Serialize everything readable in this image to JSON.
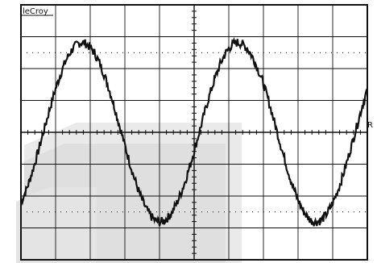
{
  "brand": "leCroy",
  "channel_label": "R",
  "colors": {
    "background": "#ffffff",
    "grid": "#111111",
    "trace": "#111111",
    "watermark": "#e6e6e6"
  },
  "chart_data": {
    "type": "line",
    "title": "",
    "xlabel": "",
    "ylabel": "",
    "grid": true,
    "divisions": {
      "x": 10,
      "y": 8
    },
    "xlim": [
      0,
      10
    ],
    "ylim": [
      -4,
      4
    ],
    "series": [
      {
        "x": [
          0,
          0.125,
          0.25,
          0.375,
          0.5,
          0.625,
          0.75,
          0.875,
          1,
          1.125,
          1.25,
          1.375,
          1.5,
          1.625,
          1.75,
          1.875,
          2,
          2.125,
          2.25,
          2.375,
          2.5,
          2.625,
          2.75,
          2.875,
          3,
          3.125,
          3.25,
          3.375,
          3.5,
          3.625,
          3.75,
          3.875,
          4,
          4.125,
          4.25,
          4.375,
          4.5,
          4.625,
          4.75,
          4.875,
          5,
          5.125,
          5.25,
          5.375,
          5.5,
          5.625,
          5.75,
          5.875,
          6,
          6.125,
          6.25,
          6.375,
          6.5,
          6.625,
          6.75,
          6.875,
          7,
          7.125,
          7.25,
          7.375,
          7.5,
          7.625,
          7.75,
          7.875,
          8,
          8.125,
          8.25,
          8.375,
          8.5,
          8.625,
          8.75,
          8.875,
          9,
          9.125,
          9.25,
          9.375,
          9.5,
          9.625,
          9.75,
          9.875,
          10
        ],
        "y": [
          -2.2,
          -1.89,
          -1.51,
          -1.07,
          -0.59,
          -0.09,
          0.41,
          0.9,
          1.36,
          1.77,
          2.13,
          2.42,
          2.63,
          2.77,
          2.82,
          2.78,
          2.67,
          2.48,
          2.22,
          1.89,
          1.51,
          1.07,
          0.59,
          0.09,
          -0.41,
          -0.9,
          -1.36,
          -1.77,
          -2.13,
          -2.42,
          -2.63,
          -2.77,
          -2.82,
          -2.78,
          -2.67,
          -2.48,
          -2.22,
          -1.89,
          -1.51,
          -1.07,
          -0.59,
          -0.09,
          0.41,
          0.9,
          1.36,
          1.77,
          2.13,
          2.42,
          2.63,
          2.77,
          2.82,
          2.78,
          2.67,
          2.48,
          2.22,
          1.89,
          1.51,
          1.07,
          0.59,
          0.09,
          -0.41,
          -0.9,
          -1.36,
          -1.77,
          -2.13,
          -2.42,
          -2.63,
          -2.77,
          -2.82,
          -2.78,
          -2.67,
          -2.48,
          -2.22,
          -1.89,
          -1.51,
          -1.07,
          -0.59,
          -0.09,
          0.41,
          0.9,
          1.36
        ]
      }
    ]
  }
}
